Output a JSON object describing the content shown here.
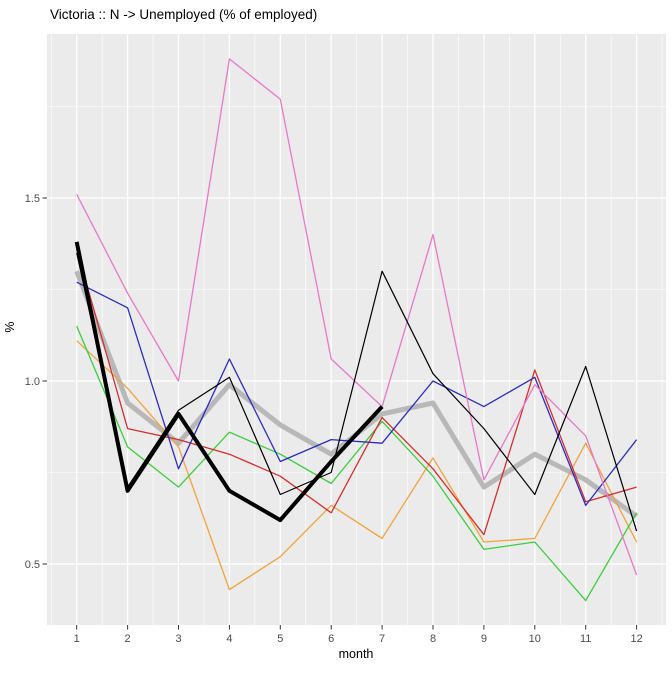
{
  "title": "Victoria :: N -> Unemployed (% of employed)",
  "chart_data": {
    "type": "line",
    "title": "Victoria :: N -> Unemployed (% of employed)",
    "xlabel": "month",
    "ylabel": "%",
    "x": [
      1,
      2,
      3,
      4,
      5,
      6,
      7,
      8,
      9,
      10,
      11,
      12
    ],
    "x_ticks": [
      "1",
      "2",
      "3",
      "4",
      "5",
      "6",
      "7",
      "8",
      "9",
      "10",
      "11",
      "12"
    ],
    "y_ticks": [
      {
        "value": 0.5,
        "label": "0.5"
      },
      {
        "value": 1.0,
        "label": "1.0"
      },
      {
        "value": 1.5,
        "label": "1.5"
      }
    ],
    "xlim": [
      0.45,
      12.55
    ],
    "ylim": [
      0.33,
      1.95
    ],
    "grid": true,
    "legend": false,
    "panel_bg": "#EBEBEB",
    "grid_color": "#FFFFFF",
    "axis_text_color": "#4D4D4D",
    "tick_color": "#333333",
    "major_grid_values_y": [
      0.5,
      1.0,
      1.5
    ],
    "minor_grid_values_y": [
      0.75,
      1.25,
      1.75
    ],
    "minor_grid_values_x": [
      0.5,
      1.5,
      2.5,
      3.5,
      4.5,
      5.5,
      6.5,
      7.5,
      8.5,
      9.5,
      10.5,
      11.5,
      12.5
    ],
    "series": [
      {
        "name": "series-gray-thick",
        "color": "#B8B8B8",
        "width": 5,
        "x": [
          1,
          2,
          3,
          4,
          5,
          6,
          7,
          8,
          9,
          10,
          11,
          12
        ],
        "values": [
          1.3,
          0.94,
          0.83,
          0.99,
          0.88,
          0.8,
          0.91,
          0.94,
          0.71,
          0.8,
          0.73,
          0.63
        ]
      },
      {
        "name": "series-orange",
        "color": "#F2A33C",
        "width": 1.3,
        "x": [
          1,
          2,
          3,
          4,
          5,
          6,
          7,
          8,
          9,
          10,
          11,
          12
        ],
        "values": [
          1.11,
          0.98,
          0.82,
          0.43,
          0.52,
          0.66,
          0.57,
          0.79,
          0.56,
          0.57,
          0.83,
          0.56
        ]
      },
      {
        "name": "series-green",
        "color": "#3BCE3B",
        "width": 1.3,
        "x": [
          1,
          2,
          3,
          4,
          5,
          6,
          7,
          8,
          9,
          10,
          11,
          12
        ],
        "values": [
          1.15,
          0.82,
          0.71,
          0.86,
          0.8,
          0.72,
          0.89,
          0.74,
          0.54,
          0.56,
          0.4,
          0.64
        ]
      },
      {
        "name": "series-red",
        "color": "#D62E2E",
        "width": 1.3,
        "x": [
          1,
          2,
          3,
          4,
          5,
          6,
          7,
          8,
          9,
          10,
          11,
          12
        ],
        "values": [
          1.36,
          0.87,
          0.84,
          0.8,
          0.74,
          0.64,
          0.9,
          0.76,
          0.58,
          1.03,
          0.67,
          0.71
        ]
      },
      {
        "name": "series-blue",
        "color": "#2B2BC4",
        "width": 1.3,
        "x": [
          1,
          2,
          3,
          4,
          5,
          6,
          7,
          8,
          9,
          10,
          11,
          12
        ],
        "values": [
          1.27,
          1.2,
          0.76,
          1.06,
          0.78,
          0.84,
          0.83,
          1.0,
          0.93,
          1.01,
          0.66,
          0.84
        ]
      },
      {
        "name": "series-pink",
        "color": "#E878C8",
        "width": 1.3,
        "x": [
          1,
          2,
          3,
          4,
          5,
          6,
          7,
          8,
          9,
          10,
          11,
          12
        ],
        "values": [
          1.51,
          1.24,
          1.0,
          1.88,
          1.77,
          1.06,
          0.93,
          1.4,
          0.73,
          0.99,
          0.85,
          0.47
        ]
      },
      {
        "name": "series-black-thin",
        "color": "#000000",
        "width": 1.2,
        "x": [
          1,
          2,
          3,
          4,
          5,
          6,
          7,
          8,
          9,
          10,
          11,
          12
        ],
        "values": [
          1.35,
          0.71,
          0.92,
          1.01,
          0.69,
          0.75,
          1.3,
          1.02,
          0.87,
          0.69,
          1.04,
          0.59
        ]
      },
      {
        "name": "series-black-thick",
        "color": "#000000",
        "width": 4,
        "x": [
          1,
          2,
          3,
          4,
          5,
          6,
          7
        ],
        "values": [
          1.38,
          0.7,
          0.91,
          0.7,
          0.62,
          0.78,
          0.93
        ]
      }
    ]
  }
}
